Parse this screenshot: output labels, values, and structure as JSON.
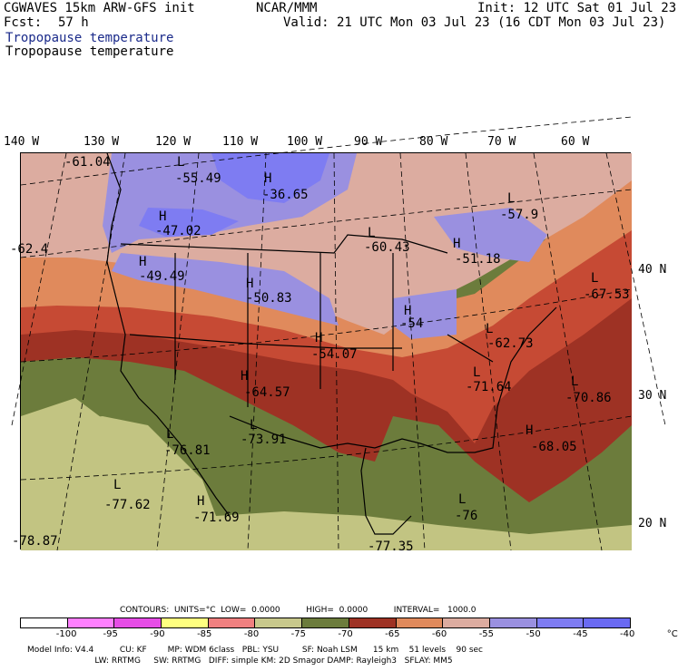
{
  "header": {
    "model": "CGWAVES 15km ARW-GFS init",
    "org": "NCAR/MMM",
    "init": "Init: 12 UTC Sat 01 Jul 23",
    "fcst_label": "Fcst:",
    "fcst_value": "57 h",
    "valid": "Valid: 21 UTC Mon 03 Jul 23 (16 CDT Mon 03 Jul 23)",
    "field_line1": "Tropopause temperature",
    "field_line2": "Tropopause temperature"
  },
  "axes": {
    "longitudes": [
      "140 W",
      "130 W",
      "120 W",
      "110 W",
      "100 W",
      "90 W",
      "80 W",
      "70 W",
      "60 W"
    ],
    "latitudes": [
      "40 N",
      "30 N",
      "20 N"
    ]
  },
  "map": {
    "region": "North America",
    "colors": {
      "c_m50_m45": "#9a90e0",
      "c_m55_m50": "#dcaca0",
      "c_m60_m55": "#e08a5c",
      "c_m65_m60": "#c64a34",
      "c_m70_m65": "#9e3224",
      "c_m75_m70": "#6c7c3c",
      "c_m80_m75": "#c2c482",
      "c_m45_m40": "#7e7cf2"
    },
    "labels": [
      {
        "text": "-61.04"
      },
      {
        "text": "L"
      },
      {
        "text": "-55.49"
      },
      {
        "text": "H"
      },
      {
        "text": "-36.65"
      },
      {
        "text": "L"
      },
      {
        "text": "-57.9"
      },
      {
        "text": "H"
      },
      {
        "text": "-47.02"
      },
      {
        "text": "L"
      },
      {
        "text": "-60.43"
      },
      {
        "text": "H"
      },
      {
        "text": "-51.18"
      },
      {
        "text": "-62.4"
      },
      {
        "text": "H"
      },
      {
        "text": "-49.49"
      },
      {
        "text": "H"
      },
      {
        "text": "-50.83"
      },
      {
        "text": "L"
      },
      {
        "text": "-67.53"
      },
      {
        "text": "H"
      },
      {
        "text": "-54"
      },
      {
        "text": "L"
      },
      {
        "text": "-62.73"
      },
      {
        "text": "H"
      },
      {
        "text": "-54.07"
      },
      {
        "text": "H"
      },
      {
        "text": "-64.57"
      },
      {
        "text": "L"
      },
      {
        "text": "-71.64"
      },
      {
        "text": "L"
      },
      {
        "text": "-70.86"
      },
      {
        "text": "L"
      },
      {
        "text": "-73.91"
      },
      {
        "text": "L"
      },
      {
        "text": "-76.81"
      },
      {
        "text": "H"
      },
      {
        "text": "-68.05"
      },
      {
        "text": "L"
      },
      {
        "text": "-77.62"
      },
      {
        "text": "H"
      },
      {
        "text": "-71.69"
      },
      {
        "text": "L"
      },
      {
        "text": "-76"
      },
      {
        "text": "-77.35"
      },
      {
        "text": "-78.87"
      }
    ]
  },
  "legend_info": {
    "contours": "CONTOURS:  UNITS=°C  LOW=  0.0000          HIGH=  0.0000          INTERVAL=   1000.0",
    "colors": [
      "#ffffff",
      "#ff80ff",
      "#e64de6",
      "#ffff80",
      "#f08080",
      "#c8c88c",
      "#6c7c3c",
      "#9e3224",
      "#e08a5c",
      "#dcaca0",
      "#9a90e0",
      "#7e7cf2",
      "#6a6af2"
    ],
    "ticks": [
      "-100",
      "-95",
      "-90",
      "-85",
      "-80",
      "-75",
      "-70",
      "-65",
      "-60",
      "-55",
      "-50",
      "-45",
      "-40",
      "°C"
    ]
  },
  "footer": {
    "line1": "Model Info: V4.4          CU: KF        MP: WDM 6class   PBL: YSU         SF: Noah LSM      15 km    51 levels    90 sec",
    "line2": "                          LW: RRTMG     SW: RRTMG   DIFF: simple KM: 2D Smagor DAMP: Rayleigh3   SFLAY: MM5"
  }
}
